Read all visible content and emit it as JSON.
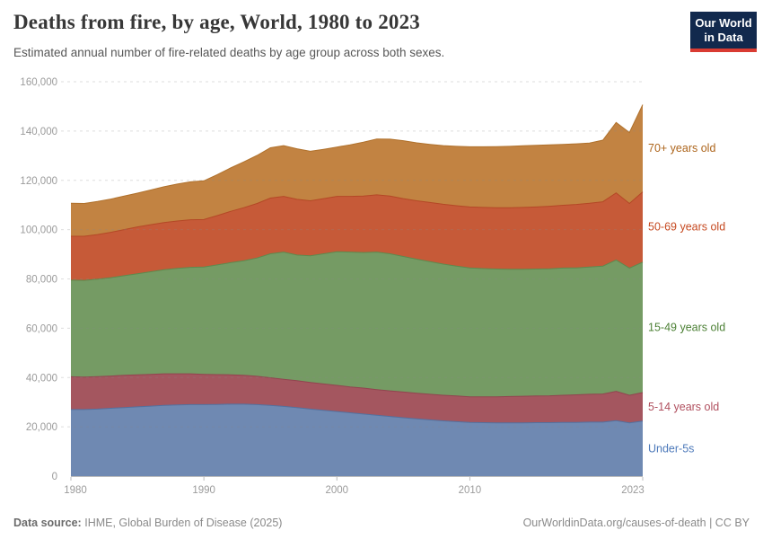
{
  "header": {
    "title": "Deaths from fire, by age, World, 1980 to 2023",
    "subtitle": "Estimated annual number of fire-related deaths by age group across both sexes."
  },
  "logo": {
    "line1": "Our World",
    "line2": "in Data",
    "bg": "#12294d",
    "accent": "#d93b32"
  },
  "footer": {
    "source_label": "Data source:",
    "source_value": "IHME, Global Burden of Disease (2025)",
    "right_text": "OurWorldinData.org/causes-of-death | CC BY"
  },
  "chart_data": {
    "type": "area",
    "stacked": true,
    "title": "Deaths from fire, by age, World, 1980 to 2023",
    "xlabel": "",
    "ylabel": "",
    "ylim": [
      0,
      160000
    ],
    "grid": "horizontal-dashed",
    "legend_position": "right-edge-labels",
    "x": [
      1980,
      1981,
      1982,
      1983,
      1984,
      1985,
      1986,
      1987,
      1988,
      1989,
      1990,
      1991,
      1992,
      1993,
      1994,
      1995,
      1996,
      1997,
      1998,
      1999,
      2000,
      2001,
      2002,
      2003,
      2004,
      2005,
      2006,
      2007,
      2008,
      2009,
      2010,
      2011,
      2012,
      2013,
      2014,
      2015,
      2016,
      2017,
      2018,
      2019,
      2020,
      2021,
      2022,
      2023
    ],
    "xticks": [
      1980,
      1990,
      2000,
      2010,
      2023
    ],
    "yticks": [
      {
        "value": 0,
        "label": "0"
      },
      {
        "value": 20000,
        "label": "20,000"
      },
      {
        "value": 40000,
        "label": "40,000"
      },
      {
        "value": 60000,
        "label": "60,000"
      },
      {
        "value": 80000,
        "label": "80,000"
      },
      {
        "value": 100000,
        "label": "100,000"
      },
      {
        "value": 120000,
        "label": "120,000"
      },
      {
        "value": 140000,
        "label": "140,000"
      },
      {
        "value": 160000,
        "label": "160,000"
      }
    ],
    "series": [
      {
        "id": "under-5s",
        "name": "Under-5s",
        "color": "#6f89b2",
        "line_color": "#53719f",
        "label_color": "#4d79ba",
        "values": [
          27000,
          27000,
          27200,
          27500,
          27800,
          28100,
          28400,
          28700,
          28900,
          29000,
          29000,
          29100,
          29200,
          29200,
          29000,
          28700,
          28300,
          27800,
          27200,
          26700,
          26200,
          25700,
          25200,
          24700,
          24200,
          23700,
          23200,
          22800,
          22400,
          22100,
          21800,
          21700,
          21600,
          21600,
          21600,
          21700,
          21700,
          21800,
          21800,
          21900,
          21900,
          22500,
          21600,
          22300
        ]
      },
      {
        "id": "5-14",
        "name": "5-14 years old",
        "color": "#a4565f",
        "line_color": "#91444f",
        "label_color": "#b04f5e",
        "values": [
          13300,
          13200,
          13200,
          13100,
          13100,
          13000,
          12900,
          12800,
          12600,
          12500,
          12300,
          12100,
          11900,
          11700,
          11500,
          11200,
          11000,
          10900,
          10800,
          10700,
          10600,
          10500,
          10500,
          10400,
          10400,
          10400,
          10400,
          10400,
          10400,
          10400,
          10400,
          10500,
          10600,
          10700,
          10800,
          10800,
          10900,
          11000,
          11200,
          11300,
          11400,
          11900,
          11200,
          11600
        ]
      },
      {
        "id": "15-49",
        "name": "15-49 years old",
        "color": "#759b64",
        "line_color": "#5d8a4e",
        "label_color": "#4c8035",
        "values": [
          39200,
          39200,
          39500,
          39900,
          40400,
          41000,
          41600,
          42200,
          42800,
          43200,
          43500,
          44500,
          45500,
          46500,
          48000,
          50300,
          51600,
          51000,
          51400,
          52800,
          54200,
          54700,
          55000,
          55800,
          55600,
          55000,
          54400,
          53800,
          53200,
          52700,
          52300,
          52000,
          51800,
          51600,
          51500,
          51500,
          51500,
          51600,
          51500,
          51600,
          51900,
          53300,
          51600,
          52900
        ]
      },
      {
        "id": "50-69",
        "name": "50-69 years old",
        "color": "#c65a38",
        "line_color": "#b44826",
        "label_color": "#c64a21",
        "values": [
          17800,
          17900,
          18100,
          18400,
          18700,
          19000,
          19100,
          19200,
          19200,
          19300,
          19300,
          20000,
          20800,
          21500,
          22100,
          22600,
          22600,
          22600,
          22300,
          22400,
          22500,
          22600,
          22900,
          23200,
          23400,
          23500,
          23700,
          24000,
          24300,
          24500,
          24700,
          24800,
          24900,
          25000,
          25100,
          25200,
          25400,
          25500,
          25700,
          25900,
          26100,
          27200,
          26200,
          28500
        ]
      },
      {
        "id": "70-plus",
        "name": "70+ years old",
        "color": "#c28342",
        "line_color": "#b0712c",
        "label_color": "#ad651c",
        "values": [
          13400,
          13300,
          13400,
          13500,
          13600,
          13700,
          14100,
          14500,
          15000,
          15400,
          15700,
          16600,
          17600,
          18600,
          19500,
          20400,
          20600,
          20500,
          20100,
          20000,
          20000,
          20900,
          21900,
          22700,
          23100,
          23500,
          23500,
          23600,
          23800,
          24100,
          24400,
          24600,
          24800,
          24900,
          25000,
          25000,
          24900,
          24700,
          24600,
          24400,
          25000,
          28600,
          28800,
          35400
        ]
      }
    ]
  }
}
